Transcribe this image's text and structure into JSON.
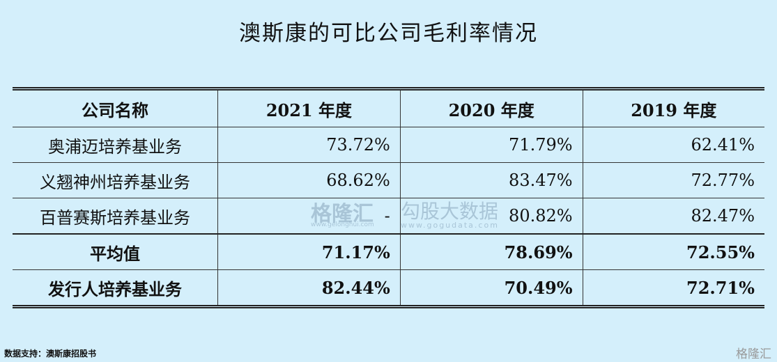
{
  "title": "澳斯康的可比公司毛利率情况",
  "table": {
    "header": [
      "公司名称",
      "2021 年度",
      "2020 年度",
      "2019 年度"
    ],
    "rows": [
      [
        "奥浦迈培养基业务",
        "73.72%",
        "71.79%",
        "62.41%"
      ],
      [
        "义翘神州培养基业务",
        "68.62%",
        "83.47%",
        "72.77%"
      ],
      [
        "百普赛斯培养基业务",
        "-",
        "80.82%",
        "82.47%"
      ],
      [
        "平均值",
        "71.17%",
        "78.69%",
        "72.55%"
      ],
      [
        "发行人培养基业务",
        "82.44%",
        "70.49%",
        "72.71%"
      ]
    ]
  },
  "watermark": {
    "brand": "格隆汇",
    "brand_url": "www.gelonghui.com",
    "data_brand": "勾股大数据",
    "data_url": "www.gogudata.com"
  },
  "footer": {
    "source": "数据支持：澳斯康招股书",
    "logo": "格隆汇"
  }
}
